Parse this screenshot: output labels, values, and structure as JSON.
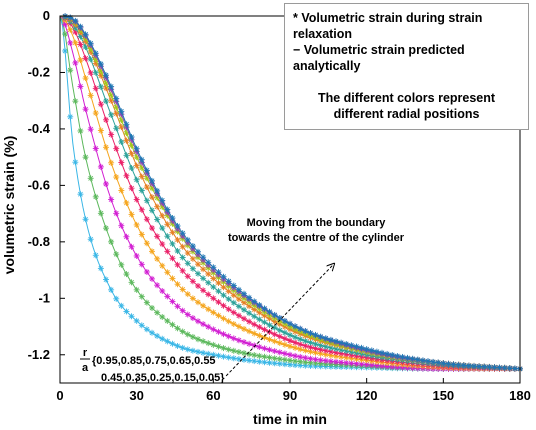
{
  "chart_data": {
    "type": "scatter",
    "title": "",
    "xlabel": "time in min",
    "ylabel": "volumetric strain (%)",
    "xlim": [
      0,
      180
    ],
    "ylim": [
      -1.3,
      0
    ],
    "xticks": [
      0,
      30,
      60,
      90,
      120,
      150,
      180
    ],
    "yticks": [
      0,
      -0.2,
      -0.4,
      -0.6,
      -0.8,
      -1,
      -1.2
    ],
    "xtick_labels": [
      "0",
      "30",
      "60",
      "90",
      "120",
      "150",
      "180"
    ],
    "ytick_labels": [
      "0",
      "-0.2",
      "-0.4",
      "-0.6",
      "-0.8",
      "-1",
      "-1.2"
    ],
    "grid": false,
    "legend_placement": "top-right",
    "series_colors": [
      "#39b6e6",
      "#5cb85c",
      "#d21ed2",
      "#f5a51c",
      "#ea1f67",
      "#2aa198",
      "#e67e22",
      "#a3c61c",
      "#8e44ad",
      "#1f77b4"
    ],
    "marker": "asterisk",
    "series": [
      {
        "r_over_a": 0.95,
        "values": [
          [
            0,
            0
          ],
          [
            5,
            -0.45
          ],
          [
            10,
            -0.72
          ],
          [
            20,
            -0.97
          ],
          [
            30,
            -1.08
          ],
          [
            45,
            -1.165
          ],
          [
            60,
            -1.2
          ],
          [
            90,
            -1.235
          ],
          [
            120,
            -1.245
          ],
          [
            150,
            -1.25
          ],
          [
            180,
            -1.25
          ]
        ]
      },
      {
        "r_over_a": 0.85,
        "values": [
          [
            0,
            0
          ],
          [
            5,
            -0.25
          ],
          [
            10,
            -0.5
          ],
          [
            20,
            -0.8
          ],
          [
            30,
            -0.97
          ],
          [
            45,
            -1.1
          ],
          [
            60,
            -1.165
          ],
          [
            90,
            -1.22
          ],
          [
            120,
            -1.24
          ],
          [
            150,
            -1.25
          ],
          [
            180,
            -1.25
          ]
        ]
      },
      {
        "r_over_a": 0.75,
        "values": [
          [
            0,
            0
          ],
          [
            5,
            -0.13
          ],
          [
            10,
            -0.33
          ],
          [
            20,
            -0.65
          ],
          [
            30,
            -0.85
          ],
          [
            45,
            -1.02
          ],
          [
            60,
            -1.11
          ],
          [
            90,
            -1.2
          ],
          [
            120,
            -1.235
          ],
          [
            150,
            -1.25
          ],
          [
            180,
            -1.25
          ]
        ]
      },
      {
        "r_over_a": 0.65,
        "values": [
          [
            0,
            0
          ],
          [
            5,
            -0.07
          ],
          [
            10,
            -0.22
          ],
          [
            20,
            -0.52
          ],
          [
            30,
            -0.74
          ],
          [
            45,
            -0.94
          ],
          [
            60,
            -1.05
          ],
          [
            90,
            -1.17
          ],
          [
            120,
            -1.22
          ],
          [
            150,
            -1.245
          ],
          [
            180,
            -1.25
          ]
        ]
      },
      {
        "r_over_a": 0.55,
        "values": [
          [
            0,
            0
          ],
          [
            5,
            -0.04
          ],
          [
            10,
            -0.15
          ],
          [
            20,
            -0.42
          ],
          [
            30,
            -0.65
          ],
          [
            45,
            -0.87
          ],
          [
            60,
            -1.0
          ],
          [
            90,
            -1.15
          ],
          [
            120,
            -1.21
          ],
          [
            150,
            -1.24
          ],
          [
            180,
            -1.25
          ]
        ]
      },
      {
        "r_over_a": 0.45,
        "values": [
          [
            0,
            0
          ],
          [
            5,
            -0.03
          ],
          [
            10,
            -0.11
          ],
          [
            20,
            -0.35
          ],
          [
            30,
            -0.58
          ],
          [
            45,
            -0.82
          ],
          [
            60,
            -0.96
          ],
          [
            90,
            -1.13
          ],
          [
            120,
            -1.2
          ],
          [
            150,
            -1.235
          ],
          [
            180,
            -1.25
          ]
        ]
      },
      {
        "r_over_a": 0.35,
        "values": [
          [
            0,
            0
          ],
          [
            5,
            -0.02
          ],
          [
            10,
            -0.09
          ],
          [
            20,
            -0.3
          ],
          [
            30,
            -0.53
          ],
          [
            45,
            -0.78
          ],
          [
            60,
            -0.93
          ],
          [
            90,
            -1.11
          ],
          [
            120,
            -1.19
          ],
          [
            150,
            -1.23
          ],
          [
            180,
            -1.25
          ]
        ]
      },
      {
        "r_over_a": 0.25,
        "values": [
          [
            0,
            0
          ],
          [
            5,
            -0.015
          ],
          [
            10,
            -0.08
          ],
          [
            20,
            -0.28
          ],
          [
            30,
            -0.5
          ],
          [
            45,
            -0.75
          ],
          [
            60,
            -0.91
          ],
          [
            90,
            -1.1
          ],
          [
            120,
            -1.19
          ],
          [
            150,
            -1.23
          ],
          [
            180,
            -1.25
          ]
        ]
      },
      {
        "r_over_a": 0.15,
        "values": [
          [
            0,
            0
          ],
          [
            5,
            -0.012
          ],
          [
            10,
            -0.07
          ],
          [
            20,
            -0.26
          ],
          [
            30,
            -0.48
          ],
          [
            45,
            -0.74
          ],
          [
            60,
            -0.9
          ],
          [
            90,
            -1.09
          ],
          [
            120,
            -1.185
          ],
          [
            150,
            -1.23
          ],
          [
            180,
            -1.25
          ]
        ]
      },
      {
        "r_over_a": 0.05,
        "values": [
          [
            0,
            0
          ],
          [
            5,
            -0.01
          ],
          [
            10,
            -0.065
          ],
          [
            20,
            -0.25
          ],
          [
            30,
            -0.47
          ],
          [
            45,
            -0.73
          ],
          [
            60,
            -0.89
          ],
          [
            90,
            -1.09
          ],
          [
            120,
            -1.18
          ],
          [
            150,
            -1.23
          ],
          [
            180,
            -1.25
          ]
        ]
      }
    ],
    "annotations": {
      "arrow_label_line1": "Moving from the boundary",
      "arrow_label_line2": "towards the centre of the cylinder",
      "ratio_numerator": "r",
      "ratio_denominator": "a",
      "positions_line1": "{0.95,0.85,0.75,0.65,0.55",
      "positions_line2": "0.45,0.35,0.25,0.15,0.05}"
    },
    "arrow": {
      "from": [
        65,
        -1.275
      ],
      "to": [
        107,
        -0.88
      ]
    }
  },
  "legend": {
    "line1": "* Volumetric strain  during strain",
    "line2": "relaxation",
    "line3": "− Volumetric strain predicted",
    "line4": "analytically",
    "note_line1": "The different colors represent",
    "note_line2": "different radial positions"
  }
}
